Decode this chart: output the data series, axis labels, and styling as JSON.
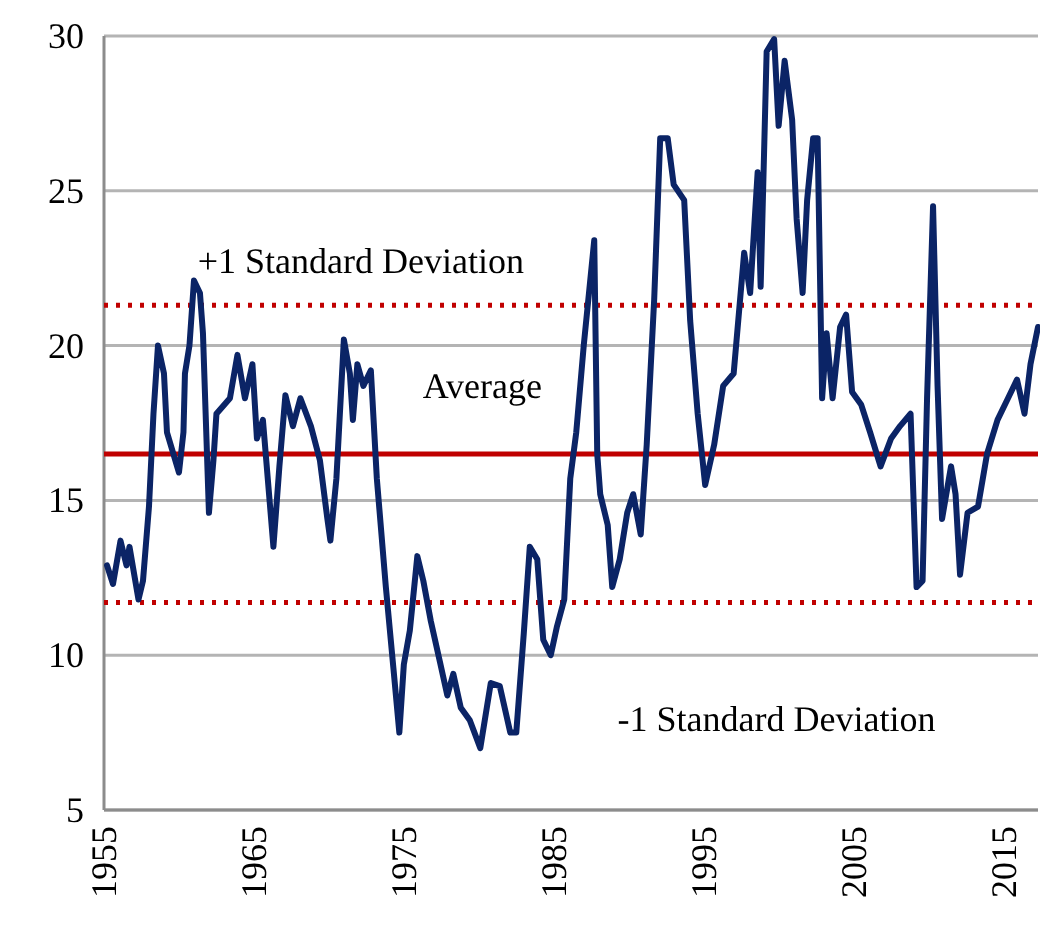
{
  "chart_data": {
    "type": "line",
    "x": [
      1955.2,
      1955.6,
      1956.1,
      1956.5,
      1956.7,
      1957.3,
      1957.6,
      1958.0,
      1958.3,
      1958.6,
      1959.0,
      1959.2,
      1960.0,
      1960.3,
      1960.4,
      1960.7,
      1961.0,
      1961.4,
      1961.6,
      1962.0,
      1962.3,
      1962.5,
      1963.4,
      1963.9,
      1964.4,
      1964.9,
      1965.2,
      1965.6,
      1966.3,
      1966.7,
      1967.1,
      1967.6,
      1968.1,
      1968.8,
      1969.4,
      1969.9,
      1970.1,
      1970.5,
      1971.0,
      1971.4,
      1971.6,
      1971.9,
      1972.3,
      1972.8,
      1973.2,
      1973.8,
      1974.3,
      1974.7,
      1975.0,
      1975.4,
      1975.9,
      1976.3,
      1976.8,
      1977.4,
      1977.9,
      1978.3,
      1978.8,
      1979.4,
      1980.1,
      1980.8,
      1981.4,
      1982.1,
      1982.5,
      1983.0,
      1983.4,
      1983.9,
      1984.3,
      1984.8,
      1985.2,
      1985.7,
      1986.1,
      1986.5,
      1987.0,
      1987.7,
      1987.9,
      1988.1,
      1988.6,
      1988.9,
      1989.4,
      1989.9,
      1990.3,
      1990.8,
      1991.2,
      1991.7,
      1992.1,
      1992.6,
      1993.0,
      1993.7,
      1994.1,
      1994.6,
      1995.1,
      1995.7,
      1996.3,
      1997.0,
      1997.7,
      1998.1,
      1998.6,
      1998.8,
      1999.2,
      1999.7,
      2000.0,
      2000.4,
      2000.9,
      2001.2,
      2001.6,
      2001.9,
      2002.3,
      2002.6,
      2002.9,
      2003.2,
      2003.6,
      2004.1,
      2004.5,
      2004.9,
      2005.5,
      2006.1,
      2006.8,
      2007.5,
      2008.1,
      2008.8,
      2009.2,
      2009.6,
      2009.9,
      2010.3,
      2010.6,
      2010.9,
      2011.5,
      2011.8,
      2012.1,
      2012.6,
      2013.3,
      2013.9,
      2014.6,
      2015.3,
      2015.9,
      2016.4,
      2016.8,
      2017.3
    ],
    "series": [
      {
        "color": "#0b2466",
        "values": [
          12.9,
          12.3,
          13.7,
          12.9,
          13.5,
          11.8,
          12.4,
          14.8,
          17.8,
          20.0,
          19.1,
          17.2,
          15.9,
          17.2,
          19.1,
          20.0,
          22.1,
          21.7,
          20.4,
          14.6,
          16.3,
          17.8,
          18.3,
          19.7,
          18.3,
          19.4,
          17.0,
          17.6,
          13.5,
          16.1,
          18.4,
          17.4,
          18.3,
          17.4,
          16.3,
          14.4,
          13.7,
          15.7,
          20.2,
          19.1,
          17.6,
          19.4,
          18.7,
          19.2,
          15.7,
          12.2,
          9.6,
          7.5,
          9.7,
          10.8,
          13.2,
          12.4,
          11.1,
          9.8,
          8.7,
          9.4,
          8.3,
          7.9,
          7.0,
          9.1,
          9.0,
          7.5,
          7.5,
          10.7,
          13.5,
          13.1,
          10.5,
          10.0,
          10.9,
          11.8,
          15.7,
          17.2,
          20.0,
          23.4,
          16.5,
          15.2,
          14.2,
          12.2,
          13.1,
          14.6,
          15.2,
          13.9,
          16.8,
          21.5,
          26.7,
          26.7,
          25.2,
          24.7,
          20.8,
          17.8,
          15.5,
          16.8,
          18.7,
          19.1,
          23.0,
          21.7,
          25.6,
          21.9,
          29.5,
          29.9,
          27.1,
          29.2,
          27.3,
          24.1,
          21.7,
          24.7,
          26.7,
          26.7,
          18.3,
          20.4,
          18.3,
          20.6,
          21.0,
          18.5,
          18.1,
          17.2,
          16.1,
          17.0,
          17.4,
          17.8,
          12.2,
          12.4,
          18.3,
          24.5,
          18.7,
          14.4,
          16.1,
          15.2,
          12.6,
          14.6,
          14.8,
          16.5,
          17.6,
          18.3,
          18.9,
          17.8,
          19.4,
          20.6
        ]
      }
    ],
    "xlim": [
      1955,
      2017.3
    ],
    "xticks": [
      1955,
      1965,
      1975,
      1985,
      1995,
      2005,
      2015
    ],
    "ylim": [
      5,
      30
    ],
    "yticks": [
      5,
      10,
      15,
      20,
      25,
      30
    ],
    "grid": "y",
    "ref_lines": [
      {
        "axis": "y",
        "value": 21.3,
        "label": "+1 Standard Deviation",
        "color": "#c00000",
        "line_style": "dotted"
      },
      {
        "axis": "y",
        "value": 16.5,
        "label": "Average",
        "color": "#c00000",
        "line_style": "solid"
      },
      {
        "axis": "y",
        "value": 11.7,
        "label": "-1 Standard Deviation",
        "color": "#c00000",
        "line_style": "dotted"
      }
    ]
  }
}
